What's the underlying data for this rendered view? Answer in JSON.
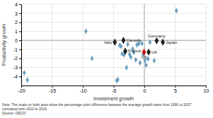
{
  "chart_data": {
    "type": "scatter",
    "xlabel": "Investment growth",
    "ylabel": "Productivity growth",
    "xlim": [
      -20,
      10
    ],
    "ylim": [
      -5,
      4
    ],
    "xticks": [
      -20,
      -15,
      -10,
      -5,
      0,
      5,
      10
    ],
    "yticks": [
      -4,
      -3,
      -2,
      -1,
      0,
      1,
      2,
      3,
      4
    ],
    "grid": true,
    "series": [
      {
        "color": "#6a9fc0",
        "marker": "diamond",
        "x": [
          -19.5,
          -19.0,
          -9.5,
          -8.5,
          -4.3,
          -4.5,
          -4.0,
          -3.8,
          -3.6,
          -3.3,
          -2.9,
          -2.7,
          -2.4,
          -2.2,
          -1.9,
          -1.7,
          -1.4,
          -1.2,
          -0.9,
          -0.7,
          -0.4,
          -0.2,
          0.1,
          0.3,
          0.6,
          0.9,
          1.6,
          5.2
        ],
        "values": [
          -3.6,
          -4.4,
          1.0,
          -2.0,
          -4.35,
          -4.45,
          -0.55,
          -0.65,
          -1.5,
          -1.6,
          -3.0,
          -0.45,
          -1.55,
          -1.85,
          -0.95,
          -1.35,
          -2.15,
          -0.5,
          -0.35,
          -2.5,
          -0.35,
          -1.55,
          -2.25,
          -2.75,
          -2.05,
          -0.22,
          -2.25,
          3.3
        ]
      },
      {
        "color": "#222222",
        "marker": "diamond",
        "x": [
          -4.8,
          -3.4,
          -3.1,
          2.0,
          3.0
        ],
        "values": [
          -0.2,
          0.0,
          -1.2,
          -0.05,
          -0.2
        ],
        "labels": [
          "Italy",
          "Canada",
          "France",
          "Germany",
          "Japan"
        ]
      },
      {
        "color": "#cc1111",
        "marker": "diamond",
        "x": [
          -0.05
        ],
        "values": [
          -1.3
        ],
        "labels": [
          "US"
        ]
      },
      {
        "color": "#222222",
        "marker": "diamond",
        "x": [
          0.7
        ],
        "values": [
          -1.3
        ],
        "labels": [
          "UK"
        ]
      }
    ],
    "annotations": [
      "Note: The scale on both axes show the percentage point difference between the average growth rates from 1990 to 2007",
      "compared with 2010 to 2016.",
      "Source: OECD"
    ]
  }
}
